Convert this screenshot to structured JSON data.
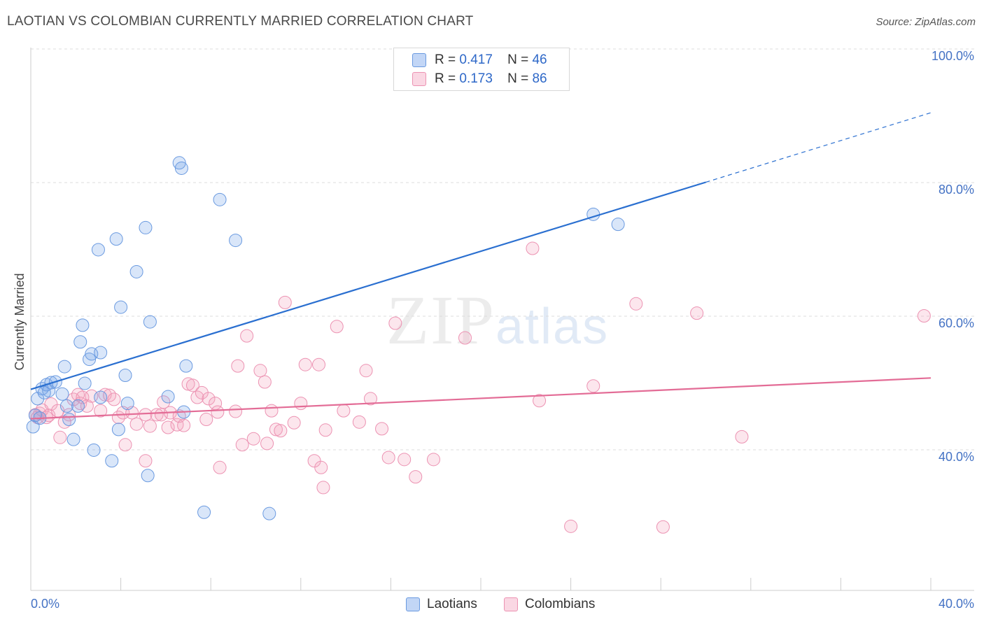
{
  "header": {
    "title": "LAOTIAN VS COLOMBIAN CURRENTLY MARRIED CORRELATION CHART",
    "source": "Source: ZipAtlas.com"
  },
  "watermark": {
    "zip": "ZIP",
    "atlas": "atlas"
  },
  "legend": {
    "rows": [
      {
        "r_label": "R =",
        "r_value": "0.417",
        "n_label": "N =",
        "n_value": "46",
        "color": "#7aaaf0"
      },
      {
        "r_label": "R =",
        "r_value": "0.173",
        "n_label": "N =",
        "n_value": "86",
        "color": "#f4a6c0"
      }
    ]
  },
  "bottom_legend": {
    "laotians": "Laotians",
    "colombians": "Colombians"
  },
  "colors": {
    "laotian_fill": "rgba(120,165,235,0.28)",
    "laotian_stroke": "#6a9ae0",
    "laotian_line": "#2a6fd0",
    "colombian_fill": "rgba(244,166,192,0.28)",
    "colombian_stroke": "#ec92b2",
    "colombian_line": "#e36c96",
    "axis_label": "#4472c4"
  },
  "chart_data": {
    "type": "scatter",
    "title": "LAOTIAN VS COLOMBIAN CURRENTLY MARRIED CORRELATION CHART",
    "ylabel": "Currently Married",
    "xlabel": "",
    "xlim": [
      0,
      40
    ],
    "ylim": [
      20,
      100
    ],
    "x_tick_labels": [
      "0.0%",
      "40.0%"
    ],
    "y_ticks": [
      40,
      60,
      80,
      100
    ],
    "y_tick_labels": [
      "40.0%",
      "60.0%",
      "80.0%",
      "100.0%"
    ],
    "grid": "dashed-horizontal",
    "legend_position": "top-center",
    "series": [
      {
        "name": "Laotians",
        "R": 0.417,
        "N": 46,
        "trend": {
          "x0": 0,
          "y0": 50.1,
          "x1": 30,
          "y1": 81.1,
          "dashed_to_x": 40,
          "dashed_to_y": 91.5
        },
        "points": [
          [
            0.3,
            48.7
          ],
          [
            0.5,
            50.2
          ],
          [
            0.6,
            49.6
          ],
          [
            0.7,
            50.8
          ],
          [
            0.8,
            49.9
          ],
          [
            0.9,
            51.1
          ],
          [
            1.1,
            51.2
          ],
          [
            1.4,
            49.4
          ],
          [
            1.5,
            53.5
          ],
          [
            1.6,
            47.6
          ],
          [
            1.7,
            45.6
          ],
          [
            1.9,
            42.6
          ],
          [
            2.1,
            47.6
          ],
          [
            2.2,
            57.2
          ],
          [
            2.3,
            59.7
          ],
          [
            2.4,
            51.0
          ],
          [
            2.6,
            54.6
          ],
          [
            2.7,
            55.4
          ],
          [
            2.8,
            41.0
          ],
          [
            3.0,
            71.0
          ],
          [
            3.1,
            48.9
          ],
          [
            3.1,
            55.6
          ],
          [
            3.6,
            39.4
          ],
          [
            3.8,
            72.6
          ],
          [
            3.9,
            44.1
          ],
          [
            4.0,
            62.4
          ],
          [
            4.2,
            52.2
          ],
          [
            4.3,
            48.0
          ],
          [
            4.7,
            67.7
          ],
          [
            5.1,
            74.3
          ],
          [
            5.2,
            37.2
          ],
          [
            5.3,
            60.2
          ],
          [
            6.1,
            49.0
          ],
          [
            6.6,
            84.0
          ],
          [
            6.7,
            83.2
          ],
          [
            6.8,
            46.7
          ],
          [
            6.9,
            53.6
          ],
          [
            7.7,
            31.7
          ],
          [
            8.4,
            78.5
          ],
          [
            9.1,
            72.4
          ],
          [
            10.6,
            31.5
          ],
          [
            25.0,
            76.3
          ],
          [
            26.1,
            74.8
          ],
          [
            0.1,
            44.5
          ],
          [
            0.2,
            46.2
          ],
          [
            0.4,
            45.8
          ]
        ]
      },
      {
        "name": "Colombians",
        "R": 0.173,
        "N": 86,
        "trend": {
          "x0": 0,
          "y0": 45.7,
          "x1": 40,
          "y1": 51.8
        },
        "points": [
          [
            0.2,
            46.3
          ],
          [
            0.3,
            45.9
          ],
          [
            0.4,
            46.5
          ],
          [
            0.5,
            47.0
          ],
          [
            0.7,
            45.9
          ],
          [
            0.8,
            46.2
          ],
          [
            0.9,
            47.9
          ],
          [
            1.2,
            46.9
          ],
          [
            1.3,
            42.9
          ],
          [
            1.5,
            45.2
          ],
          [
            1.7,
            46.3
          ],
          [
            1.9,
            48.6
          ],
          [
            2.1,
            49.3
          ],
          [
            2.2,
            48.0
          ],
          [
            2.3,
            48.9
          ],
          [
            2.5,
            47.6
          ],
          [
            2.7,
            49.1
          ],
          [
            3.1,
            46.9
          ],
          [
            3.3,
            49.3
          ],
          [
            3.5,
            49.2
          ],
          [
            3.7,
            48.6
          ],
          [
            3.9,
            45.9
          ],
          [
            4.1,
            46.6
          ],
          [
            4.2,
            41.8
          ],
          [
            4.5,
            46.6
          ],
          [
            4.7,
            44.9
          ],
          [
            5.1,
            46.3
          ],
          [
            5.1,
            39.4
          ],
          [
            5.3,
            44.6
          ],
          [
            5.6,
            46.3
          ],
          [
            5.8,
            46.3
          ],
          [
            5.9,
            48.2
          ],
          [
            6.1,
            44.4
          ],
          [
            6.2,
            46.6
          ],
          [
            6.5,
            44.8
          ],
          [
            6.6,
            46.1
          ],
          [
            6.8,
            44.7
          ],
          [
            7.0,
            50.9
          ],
          [
            7.2,
            50.7
          ],
          [
            7.4,
            48.9
          ],
          [
            7.6,
            49.6
          ],
          [
            7.8,
            45.6
          ],
          [
            7.9,
            48.7
          ],
          [
            8.2,
            48.0
          ],
          [
            8.3,
            46.7
          ],
          [
            8.4,
            38.4
          ],
          [
            9.1,
            46.8
          ],
          [
            9.2,
            53.6
          ],
          [
            9.4,
            41.8
          ],
          [
            9.6,
            58.1
          ],
          [
            9.9,
            42.7
          ],
          [
            10.2,
            52.9
          ],
          [
            10.4,
            51.2
          ],
          [
            10.5,
            42.0
          ],
          [
            10.7,
            46.9
          ],
          [
            10.9,
            44.1
          ],
          [
            11.1,
            43.9
          ],
          [
            11.3,
            63.1
          ],
          [
            11.7,
            45.1
          ],
          [
            12.0,
            48.0
          ],
          [
            12.2,
            53.8
          ],
          [
            12.6,
            39.4
          ],
          [
            12.8,
            53.8
          ],
          [
            12.9,
            38.4
          ],
          [
            13.0,
            35.4
          ],
          [
            13.1,
            44.0
          ],
          [
            13.6,
            59.5
          ],
          [
            13.9,
            46.9
          ],
          [
            14.6,
            45.2
          ],
          [
            14.9,
            52.9
          ],
          [
            15.1,
            48.7
          ],
          [
            15.6,
            44.2
          ],
          [
            15.9,
            39.9
          ],
          [
            16.2,
            60.0
          ],
          [
            16.6,
            39.6
          ],
          [
            17.1,
            37.0
          ],
          [
            17.9,
            39.6
          ],
          [
            19.3,
            57.8
          ],
          [
            22.3,
            71.2
          ],
          [
            22.6,
            48.4
          ],
          [
            24.0,
            29.6
          ],
          [
            25.0,
            50.6
          ],
          [
            26.9,
            62.9
          ],
          [
            28.1,
            29.5
          ],
          [
            29.6,
            61.5
          ],
          [
            31.6,
            43.0
          ]
        ]
      }
    ],
    "extra_points_colombians": [
      [
        39.7,
        61.1
      ]
    ]
  }
}
